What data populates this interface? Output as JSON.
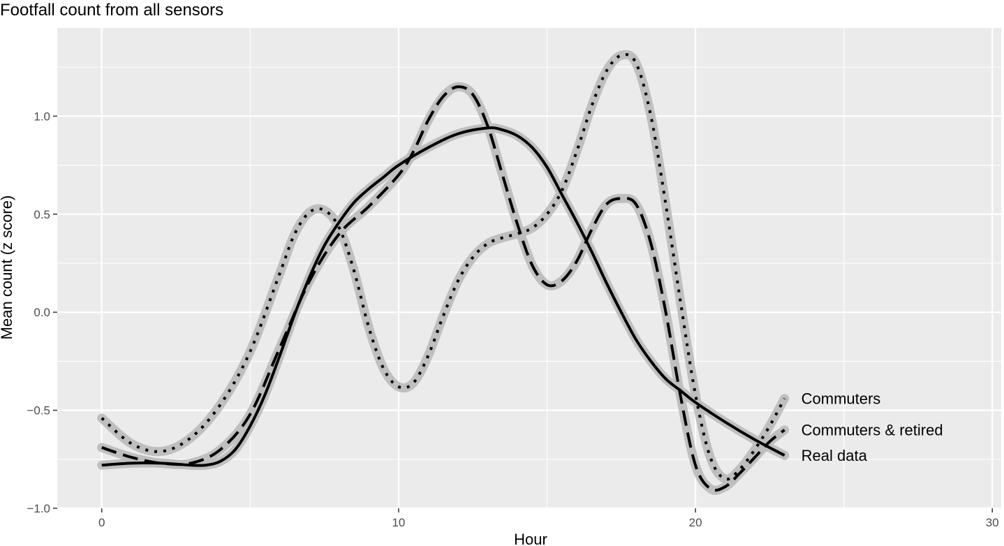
{
  "chart_data": {
    "type": "line",
    "title": "Footfall count from all sensors",
    "xlabel": "Hour",
    "ylabel": "Mean count (z score)",
    "xlim": [
      -1.5,
      30.3
    ],
    "ylim": [
      -1.0,
      1.45
    ],
    "x_ticks": [
      0,
      10,
      20,
      30
    ],
    "x_tick_labels": [
      "0",
      "10",
      "20",
      "30"
    ],
    "x_minor_ticks": [
      5,
      15,
      25
    ],
    "y_ticks": [
      -1.0,
      -0.5,
      0.0,
      0.5,
      1.0
    ],
    "y_tick_labels": [
      "−1.0",
      "−0.5",
      "0.0",
      "0.5",
      "1.0"
    ],
    "y_minor_ticks": [
      -0.75,
      -0.25,
      0.25,
      0.75,
      1.25
    ],
    "grid": true,
    "legend": "direct labels at line ends (right)",
    "series": [
      {
        "name": "Commuters",
        "linetype": "dotted",
        "x": [
          0,
          1,
          2,
          3,
          4,
          5,
          6,
          6.5,
          7,
          7.5,
          8,
          8.5,
          9,
          9.5,
          10,
          10.5,
          11,
          11.5,
          12,
          12.5,
          13,
          13.5,
          14,
          14.5,
          15,
          15.5,
          16,
          16.5,
          17,
          17.5,
          18,
          18.5,
          19,
          19.5,
          20,
          20.5,
          21,
          21.5,
          22,
          22.5,
          23
        ],
        "values": [
          -0.54,
          -0.67,
          -0.71,
          -0.64,
          -0.47,
          -0.2,
          0.2,
          0.4,
          0.51,
          0.52,
          0.43,
          0.21,
          -0.08,
          -0.29,
          -0.38,
          -0.36,
          -0.22,
          -0.02,
          0.16,
          0.28,
          0.35,
          0.38,
          0.4,
          0.43,
          0.5,
          0.62,
          0.82,
          1.05,
          1.23,
          1.31,
          1.27,
          1.0,
          0.55,
          0.05,
          -0.42,
          -0.74,
          -0.85,
          -0.8,
          -0.7,
          -0.58,
          -0.44
        ],
        "label_position": "end"
      },
      {
        "name": "Commuters & retired",
        "linetype": "dashed",
        "x": [
          0,
          1,
          2,
          3,
          4,
          5,
          6,
          7,
          8,
          9,
          10,
          10.5,
          11,
          11.5,
          12,
          12.5,
          13,
          13.5,
          14,
          14.5,
          15,
          15.5,
          16,
          16.5,
          17,
          17.5,
          18,
          18.5,
          19,
          19.5,
          20,
          20.5,
          21,
          21.5,
          22,
          22.5,
          23
        ],
        "values": [
          -0.69,
          -0.74,
          -0.77,
          -0.77,
          -0.7,
          -0.52,
          -0.18,
          0.16,
          0.4,
          0.54,
          0.7,
          0.82,
          0.98,
          1.1,
          1.15,
          1.11,
          0.95,
          0.7,
          0.45,
          0.24,
          0.14,
          0.16,
          0.26,
          0.42,
          0.55,
          0.58,
          0.55,
          0.35,
          0.0,
          -0.43,
          -0.78,
          -0.9,
          -0.89,
          -0.82,
          -0.74,
          -0.66,
          -0.6
        ],
        "label_position": "end"
      },
      {
        "name": "Real data",
        "linetype": "solid",
        "x": [
          0,
          1,
          2,
          3,
          3.5,
          4,
          4.5,
          5,
          5.5,
          6,
          6.5,
          7,
          7.5,
          8,
          8.5,
          9,
          9.5,
          10,
          11,
          12,
          13,
          13.5,
          14,
          14.5,
          15,
          15.5,
          16,
          16.5,
          17,
          17.5,
          18,
          18.5,
          19,
          19.5,
          20,
          21,
          22,
          23
        ],
        "values": [
          -0.78,
          -0.77,
          -0.77,
          -0.78,
          -0.78,
          -0.76,
          -0.7,
          -0.58,
          -0.42,
          -0.22,
          -0.01,
          0.18,
          0.34,
          0.46,
          0.56,
          0.63,
          0.69,
          0.75,
          0.84,
          0.91,
          0.94,
          0.93,
          0.9,
          0.84,
          0.74,
          0.6,
          0.46,
          0.31,
          0.15,
          0.0,
          -0.14,
          -0.25,
          -0.34,
          -0.4,
          -0.46,
          -0.56,
          -0.65,
          -0.73
        ],
        "label_position": "end"
      }
    ]
  }
}
